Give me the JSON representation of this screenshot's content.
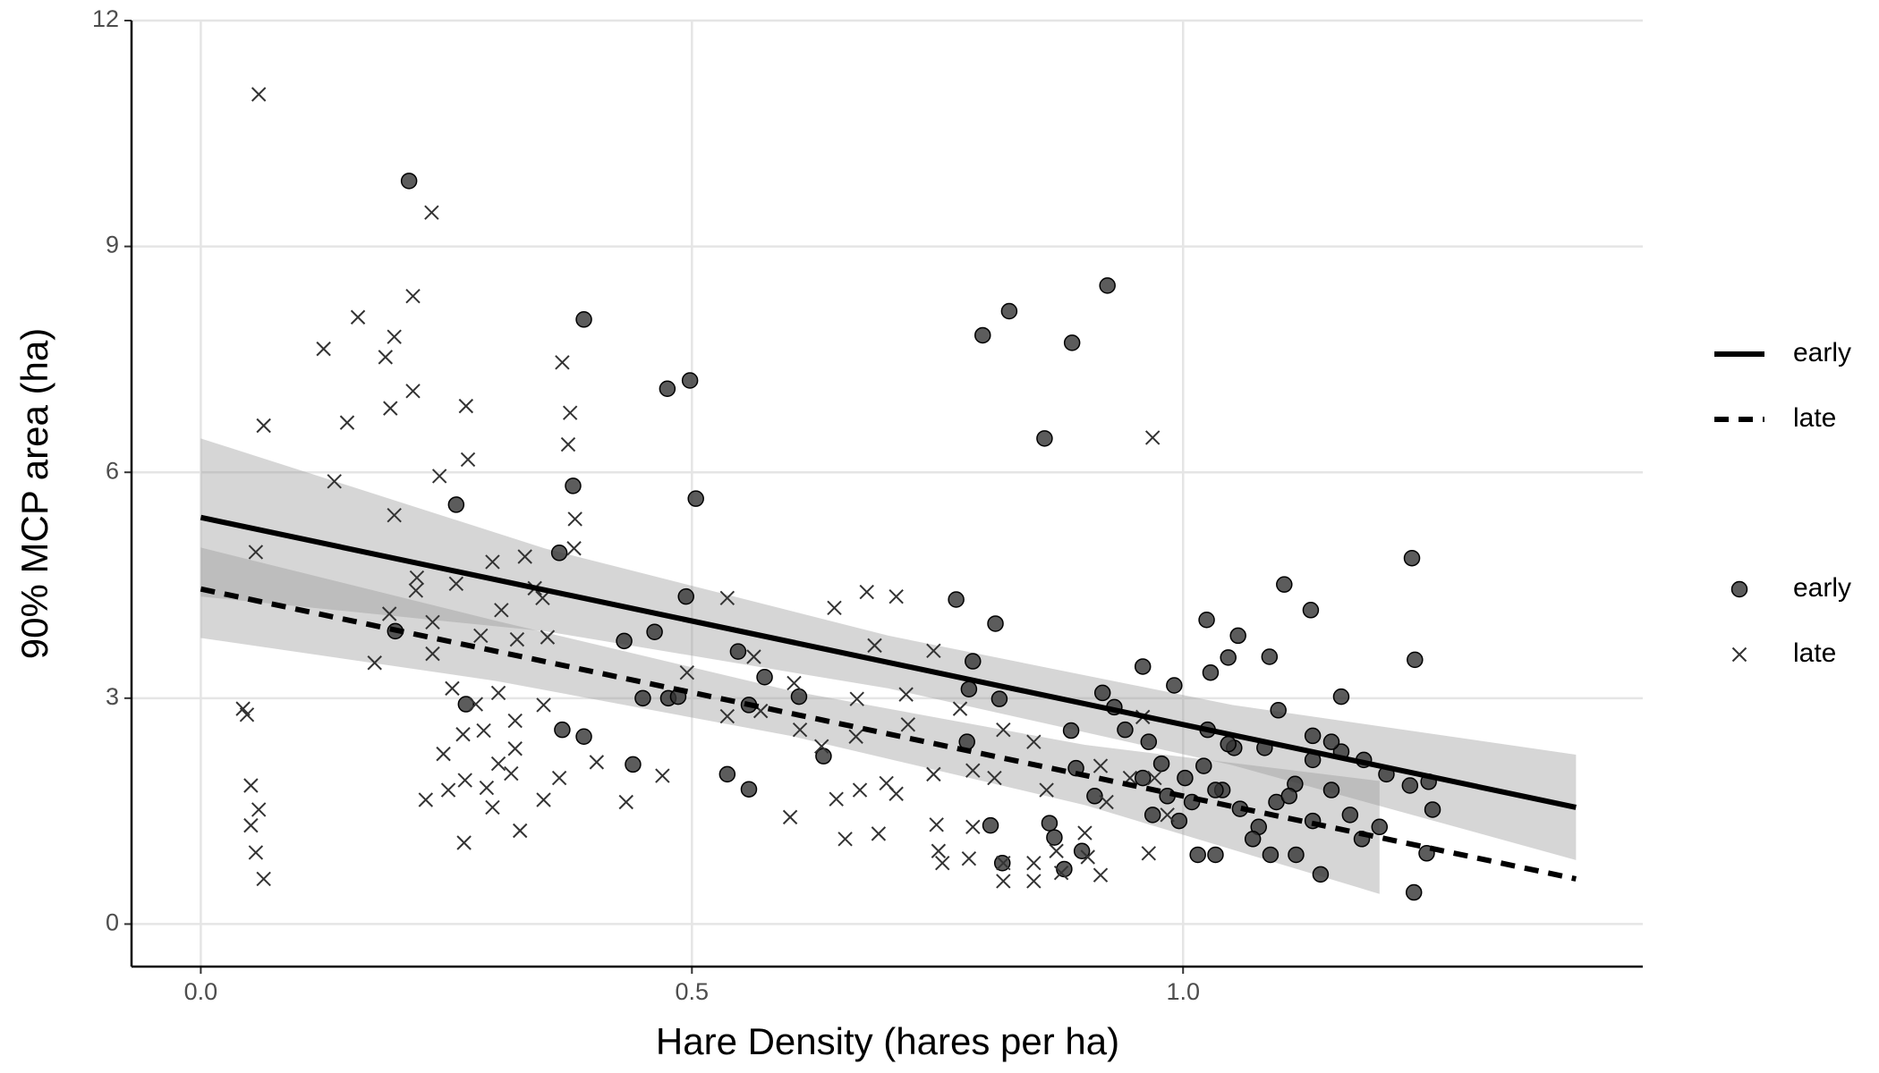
{
  "chart_data": {
    "type": "scatter",
    "x_label": "Hare Density (hares per ha)",
    "y_label": "90% MCP area (ha)",
    "xlim": [
      -0.0705,
      1.468
    ],
    "ylim": [
      -0.565,
      12
    ],
    "xticks": [
      {
        "value": 0,
        "label": "0.0"
      },
      {
        "value": 0.5,
        "label": "0.5"
      },
      {
        "value": 1,
        "label": "1.0"
      }
    ],
    "yticks": [
      0,
      3,
      6,
      9,
      12
    ],
    "grid": true,
    "legend": "right",
    "series": [
      {
        "name": "early",
        "marker": "circle",
        "color": "#333333",
        "x": [
          0.212,
          0.39,
          0.475,
          0.498,
          0.504,
          0.26,
          0.365,
          0.494,
          0.431,
          0.462,
          0.198,
          0.27,
          0.368,
          0.39,
          0.44,
          0.45,
          0.476,
          0.486,
          0.547,
          0.558,
          0.536,
          0.558,
          0.574,
          0.609,
          0.634,
          0.379,
          0.769,
          0.796,
          0.823,
          0.887,
          0.923,
          0.859,
          0.809,
          0.786,
          0.782,
          0.813,
          0.78,
          0.804,
          0.816,
          0.864,
          0.869,
          0.886,
          0.891,
          0.918,
          0.93,
          0.959,
          0.991,
          1.024,
          1.028,
          1.046,
          1.056,
          1.088,
          1.103,
          1.13,
          1.233,
          1.236,
          1.161,
          1.097,
          1.132,
          1.161,
          1.184,
          1.207,
          1.231,
          1.25,
          1.254,
          1.235,
          1.248,
          1.2,
          1.14,
          1.115,
          1.089,
          1.033,
          1.015,
          0.996,
          0.969,
          0.984,
          1.002,
          1.021,
          1.04,
          1.058,
          1.077,
          1.095,
          1.114,
          1.132,
          1.151,
          1.17,
          1.182,
          1.071,
          1.052,
          1.033,
          0.959,
          0.941,
          0.965,
          0.978,
          1.009,
          1.025,
          1.046,
          1.083,
          1.108,
          1.132,
          1.151,
          0.897,
          0.879,
          0.91
        ],
        "values": [
          9.87,
          8.03,
          7.11,
          7.22,
          5.65,
          5.57,
          4.93,
          4.35,
          3.76,
          3.88,
          3.89,
          2.92,
          2.58,
          2.49,
          2.12,
          3.0,
          3.0,
          3.02,
          3.62,
          2.91,
          1.99,
          1.79,
          3.28,
          3.02,
          2.23,
          5.82,
          4.31,
          7.82,
          8.14,
          7.72,
          8.48,
          6.45,
          3.99,
          3.49,
          3.12,
          2.99,
          2.42,
          1.31,
          0.81,
          1.34,
          1.15,
          2.57,
          2.07,
          3.07,
          2.88,
          3.42,
          3.17,
          4.04,
          3.34,
          3.54,
          3.83,
          3.55,
          4.51,
          4.17,
          4.86,
          3.51,
          3.02,
          2.84,
          2.5,
          2.29,
          2.18,
          1.99,
          1.84,
          1.89,
          1.52,
          0.42,
          0.94,
          1.29,
          0.66,
          0.92,
          0.92,
          0.92,
          0.92,
          1.37,
          1.45,
          1.7,
          1.94,
          2.1,
          1.78,
          1.53,
          1.29,
          1.62,
          1.86,
          2.18,
          1.78,
          1.45,
          1.13,
          1.13,
          2.34,
          1.78,
          1.94,
          2.58,
          2.42,
          2.13,
          1.62,
          2.58,
          2.39,
          2.34,
          1.7,
          1.37,
          2.42,
          0.97,
          0.73,
          1.7
        ]
      },
      {
        "name": "late",
        "marker": "x",
        "color": "#333333",
        "x": [
          0.059,
          0.235,
          0.216,
          0.16,
          0.197,
          0.216,
          0.193,
          0.125,
          0.188,
          0.27,
          0.368,
          0.376,
          0.374,
          0.149,
          0.064,
          0.272,
          0.243,
          0.136,
          0.381,
          0.38,
          0.197,
          0.056,
          0.22,
          0.26,
          0.297,
          0.33,
          0.34,
          0.306,
          0.348,
          0.219,
          0.192,
          0.236,
          0.236,
          0.177,
          0.285,
          0.322,
          0.353,
          0.256,
          0.28,
          0.303,
          0.32,
          0.349,
          0.288,
          0.267,
          0.247,
          0.303,
          0.32,
          0.269,
          0.291,
          0.316,
          0.365,
          0.403,
          0.349,
          0.252,
          0.229,
          0.297,
          0.325,
          0.268,
          0.043,
          0.047,
          0.051,
          0.059,
          0.051,
          0.056,
          0.064,
          0.536,
          0.645,
          0.678,
          0.708,
          0.686,
          0.495,
          0.563,
          0.604,
          0.536,
          0.57,
          0.668,
          0.718,
          0.746,
          0.61,
          0.632,
          0.667,
          0.72,
          0.773,
          0.47,
          0.433,
          0.6,
          0.647,
          0.671,
          0.698,
          0.708,
          0.746,
          0.786,
          0.808,
          0.656,
          0.69,
          0.749,
          0.786,
          0.751,
          0.755,
          0.782,
          0.817,
          0.817,
          0.848,
          0.848,
          0.876,
          0.903,
          0.916,
          0.9,
          0.922,
          0.946,
          0.969,
          0.959,
          0.971,
          0.965,
          0.984,
          0.848,
          0.861,
          0.916,
          0.817,
          0.871
        ],
        "values": [
          11.02,
          9.45,
          8.34,
          8.06,
          7.8,
          7.08,
          6.85,
          7.64,
          7.53,
          6.88,
          7.46,
          6.79,
          6.37,
          6.66,
          6.62,
          6.17,
          5.95,
          5.88,
          5.38,
          4.99,
          5.43,
          4.94,
          4.6,
          4.52,
          4.81,
          4.88,
          4.46,
          4.17,
          4.33,
          4.43,
          4.12,
          4.01,
          3.59,
          3.47,
          3.83,
          3.78,
          3.81,
          3.13,
          2.92,
          3.07,
          2.7,
          2.91,
          2.57,
          2.52,
          2.26,
          2.13,
          2.33,
          1.91,
          1.81,
          2.0,
          1.94,
          2.15,
          1.65,
          1.78,
          1.65,
          1.55,
          1.24,
          1.08,
          2.86,
          2.78,
          1.84,
          1.52,
          1.31,
          0.95,
          0.6,
          4.33,
          4.2,
          4.41,
          4.35,
          3.7,
          3.34,
          3.55,
          3.2,
          2.76,
          2.83,
          2.99,
          3.05,
          3.63,
          2.58,
          2.36,
          2.49,
          2.65,
          2.86,
          1.97,
          1.62,
          1.42,
          1.66,
          1.78,
          1.87,
          1.73,
          1.99,
          2.04,
          1.94,
          1.13,
          1.2,
          1.32,
          1.29,
          0.97,
          0.81,
          0.87,
          0.81,
          0.57,
          0.81,
          0.57,
          0.68,
          0.89,
          0.65,
          1.21,
          1.62,
          1.94,
          6.46,
          2.75,
          1.94,
          0.94,
          1.45,
          2.42,
          1.78,
          2.1,
          2.58,
          0.97
        ]
      }
    ],
    "fits": [
      {
        "name": "early",
        "dash": "solid",
        "color": "#000000",
        "x": [
          0,
          1.4
        ],
        "values": [
          5.4,
          1.55
        ],
        "band": {
          "color": "#999999",
          "x": [
            0,
            0.35,
            0.7,
            1.05,
            1.4
          ],
          "lower": [
            4.35,
            3.89,
            3.13,
            2.11,
            0.85
          ],
          "upper": [
            6.45,
            4.99,
            3.83,
            2.91,
            2.25
          ]
        }
      },
      {
        "name": "late",
        "dash": "dashed",
        "color": "#000000",
        "x": [
          0,
          1.4
        ],
        "values": [
          4.45,
          0.6
        ],
        "band": {
          "color": "#999999",
          "x": [
            0,
            0.3,
            0.6,
            0.9,
            1.2
          ],
          "lower": [
            3.8,
            3.23,
            2.5,
            1.58,
            0.4
          ],
          "upper": [
            5.0,
            4.03,
            3.1,
            2.38,
            1.9
          ]
        }
      }
    ]
  }
}
